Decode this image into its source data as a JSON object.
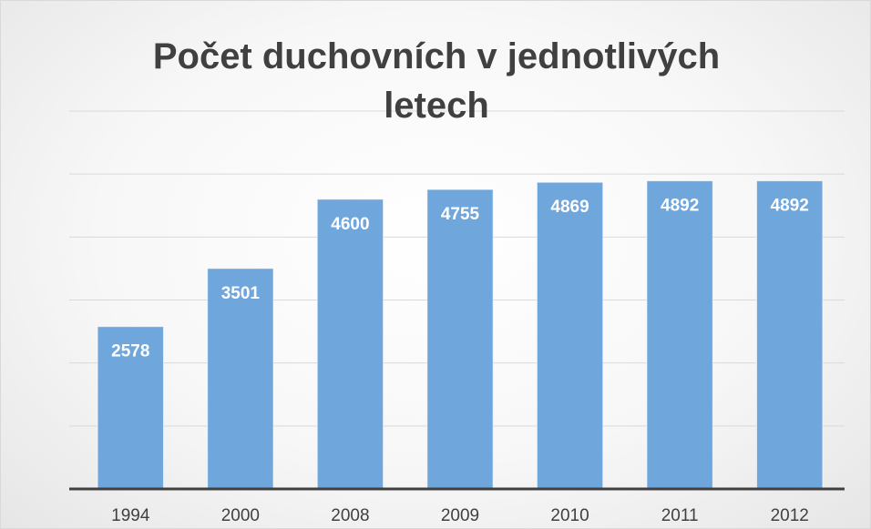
{
  "chart_data": {
    "type": "bar",
    "title": "Počet duchovních v jednotlivých letech",
    "categories": [
      "1994",
      "2000",
      "2008",
      "2009",
      "2010",
      "2011",
      "2012"
    ],
    "values": [
      2578,
      3501,
      4600,
      4755,
      4869,
      4892,
      4892
    ],
    "color": "#6fa6dc",
    "ylim": [
      0,
      6000
    ],
    "yticks": [
      0,
      1000,
      2000,
      3000,
      4000,
      5000,
      6000
    ],
    "grid": true
  }
}
